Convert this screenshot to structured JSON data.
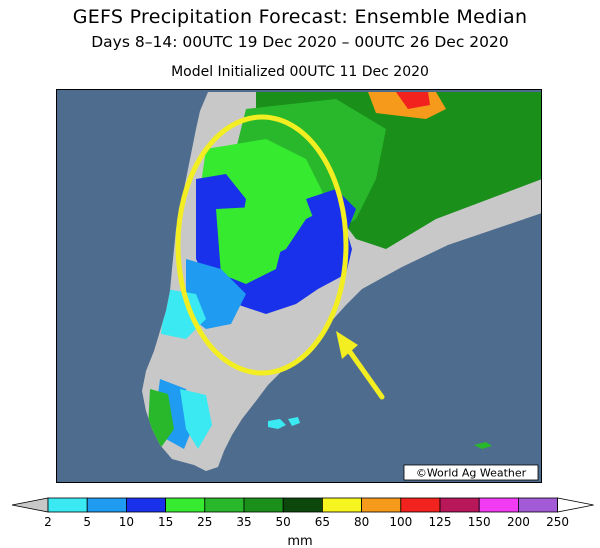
{
  "header": {
    "title": "GEFS Precipitation Forecast: Ensemble Median",
    "period": "Days 8–14: 00UTC 19 Dec 2020 – 00UTC 26 Dec 2020",
    "initialized": "Model Initialized 00UTC 11 Dec 2020"
  },
  "map": {
    "credit": "©World Ag Weather",
    "ocean_color": "#4e6c8d",
    "land_color": "#c8c8c8",
    "highlight_color": "#f2ee22",
    "annotations": [
      "yellow-ellipse",
      "yellow-arrow"
    ]
  },
  "legend": {
    "unit": "mm",
    "ticks": [
      "2",
      "5",
      "10",
      "15",
      "25",
      "35",
      "50",
      "65",
      "80",
      "100",
      "125",
      "150",
      "200",
      "250"
    ],
    "colors": [
      "#3ae9f1",
      "#1f9bf1",
      "#1a31ec",
      "#36ea2f",
      "#29b82b",
      "#1a8f1a",
      "#0c480c",
      "#f6f51f",
      "#f59a1b",
      "#f2221f",
      "#b8185a",
      "#f23cf3",
      "#a25ad6"
    ],
    "under_color": "#c8c8c8",
    "over_color": "#ffffff"
  }
}
